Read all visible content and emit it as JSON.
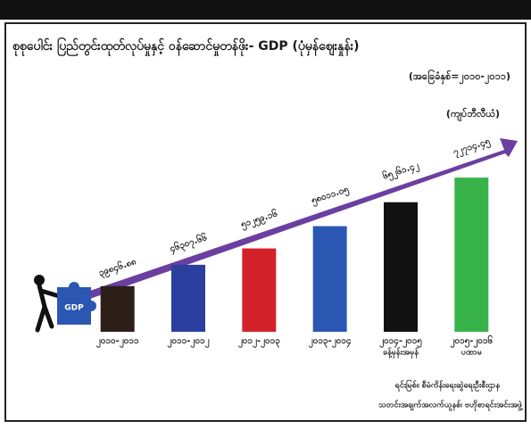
{
  "chart_data": {
    "type": "bar",
    "title": "စုစုပေါင်း ပြည်တွင်းထုတ်လုပ်မှုနှင့် ဝန်ဆောင်မှုတန်ဖိုး- GDP (ပုံမှန်ဈေးနှုန်း)",
    "subtitle": "(အခြေခံနှစ်=၂၀၁၀-၂၀၁၁)",
    "unit_label": "(ကျပ်ဘီလီယံ)",
    "icon_label": "GDP",
    "categories": [
      "၂၀၁၀-၂၀၁၁",
      "၂၀၁၁-၂၀၁၂",
      "၂၀၁၂-၂၀၁၃",
      "၂၀၁၃-၂၀၁၄",
      "၂၀၁၄-၂၀၁၅",
      "၂၀၁၅-၂၀၁၆"
    ],
    "category_notes": [
      null,
      null,
      null,
      null,
      "ခန့်မှန်းအမှန်",
      "ပဏာမ"
    ],
    "values": [
      39846.88,
      46307.66,
      51259.16,
      58011.05,
      65261.42,
      72714.45
    ],
    "value_labels": [
      "၃၉၈၄၆.၈၈",
      "၄၆၃၀၇.၆၆",
      "၅၁၂၅၉.၁၆",
      "၅၈၀၁၁.၀၅",
      "၆၅၂၆၁.၄၂",
      "၇၂၇၁၄.၄၅"
    ],
    "colors": [
      "#2b1f18",
      "#2b3f9e",
      "#d3212a",
      "#2b57b3",
      "#111111",
      "#37b34a"
    ],
    "ylim": [
      26000,
      76000
    ],
    "source": [
      "ရင်းမြစ်။ စီမံကိန်းရေးဆွဲရေးဦးစီးဌာန",
      "သတင်းအချက်အလက်ယူနစ်၊ ဗဟိုစာရင်းအင်းအဖွဲ့"
    ]
  }
}
